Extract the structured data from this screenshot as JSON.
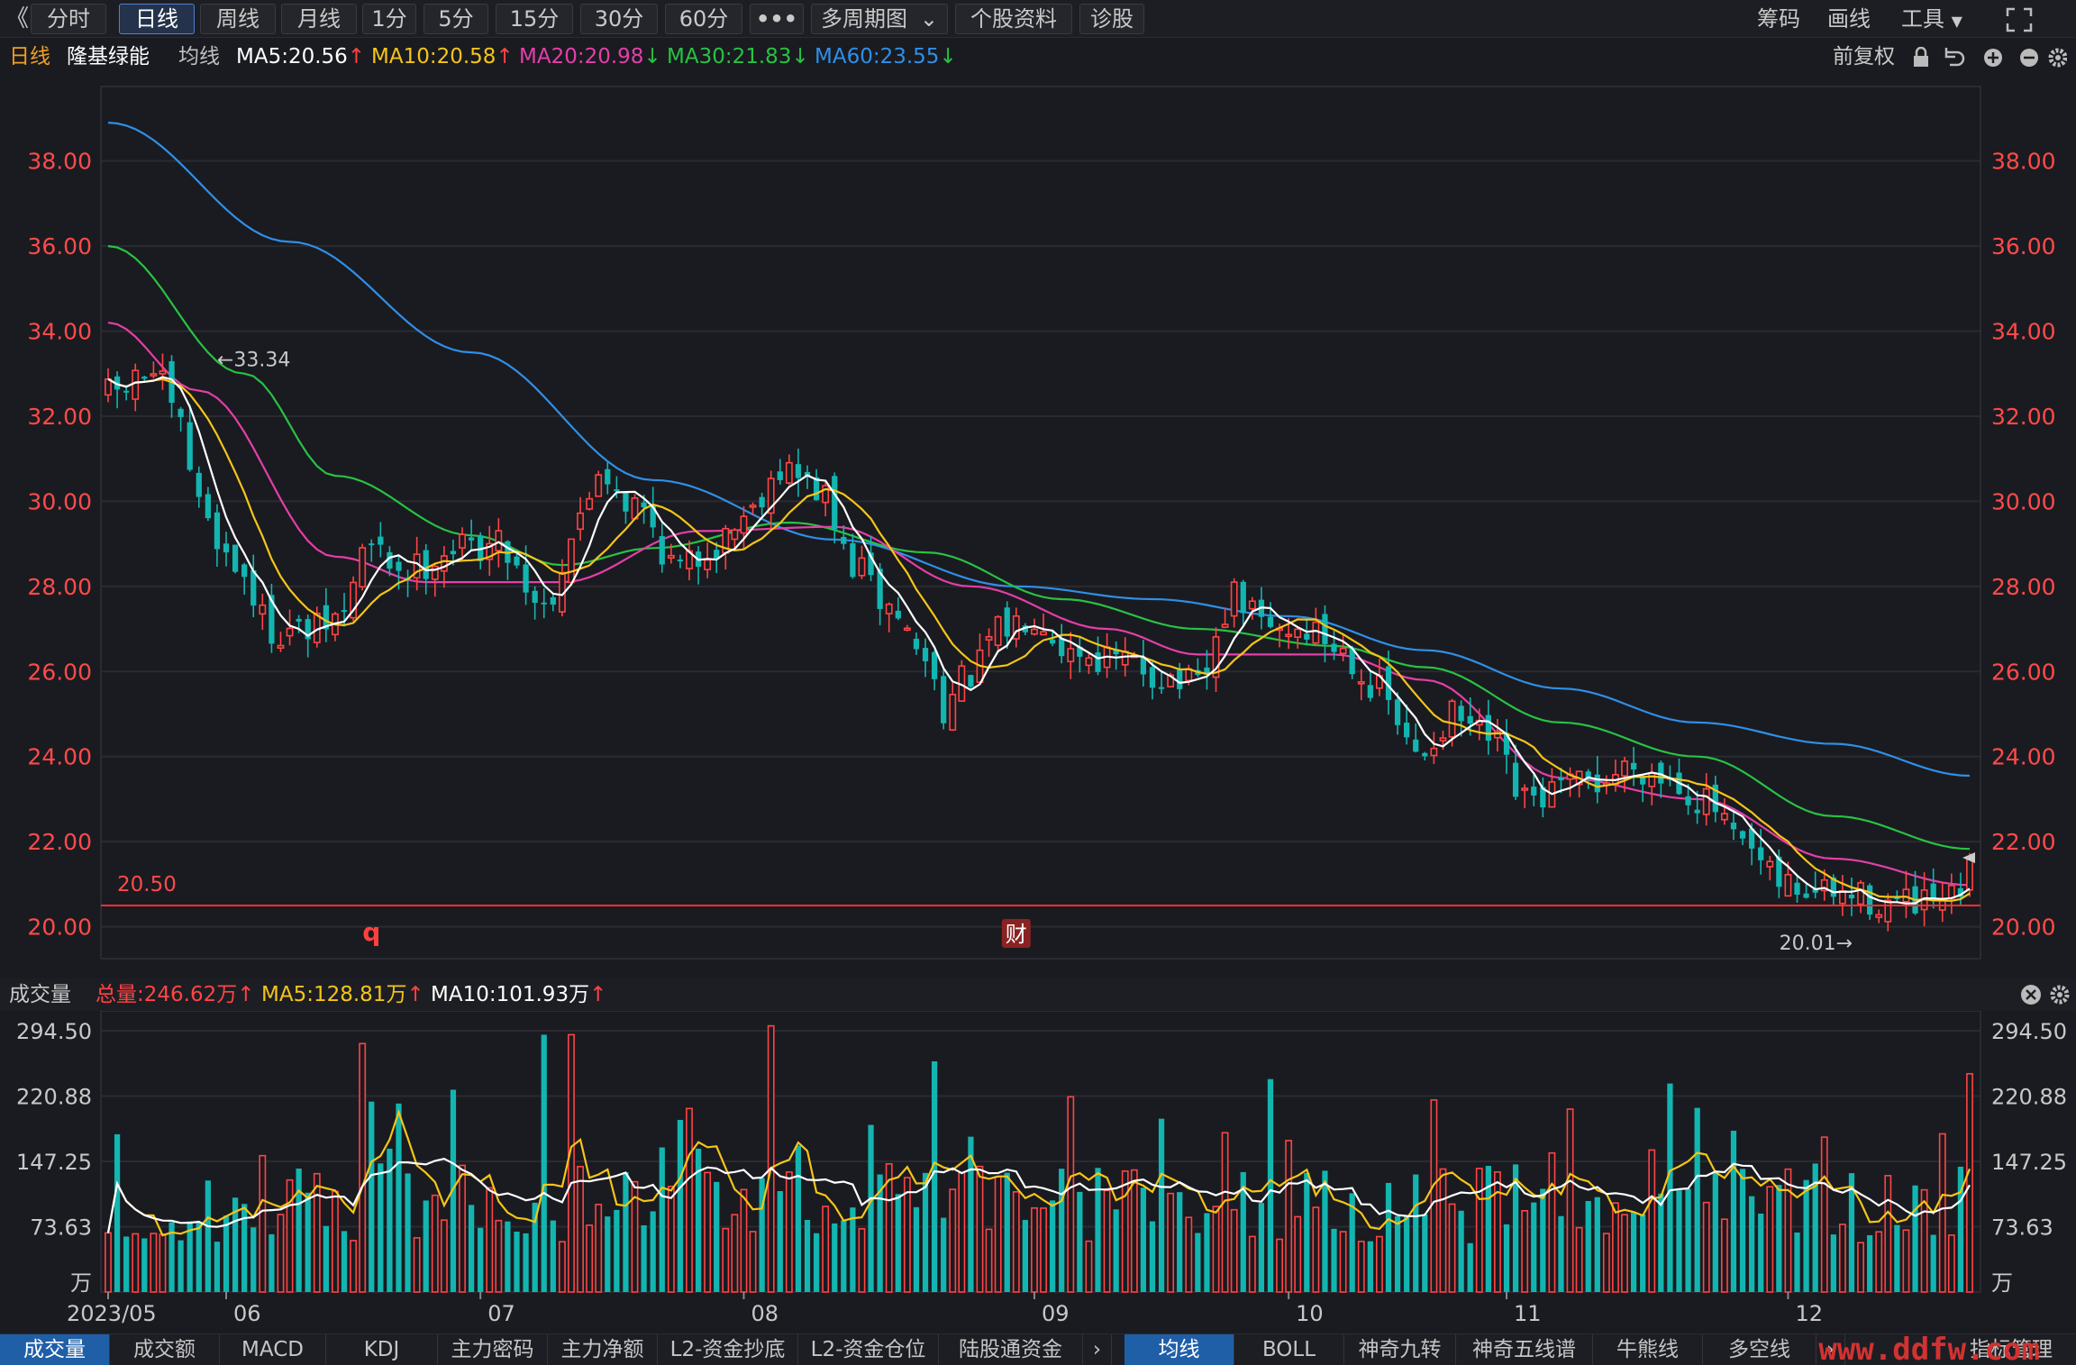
{
  "toolbar": {
    "back_glyph": "《",
    "periods": [
      "分时",
      "日线",
      "周线",
      "月线",
      "1分",
      "5分",
      "15分",
      "30分",
      "60分"
    ],
    "active_period": "日线",
    "more": "•••",
    "multi_period": "多周期图",
    "stock_info": "个股资料",
    "diagnose": "诊股",
    "chips": "筹码",
    "draw": "画线",
    "tools": "工具"
  },
  "info": {
    "period": "日线",
    "stock_name": "隆基绿能",
    "indicator": "均线",
    "ma5": "MA5:20.56",
    "ma10": "MA10:20.58",
    "ma20": "MA20:20.98",
    "ma30": "MA30:21.83",
    "ma60": "MA60:23.55",
    "adjust": "前复权"
  },
  "colors": {
    "up": "#ff4444",
    "down": "#13b5b1",
    "ma5": "#ffffff",
    "ma10": "#f5c518",
    "ma20": "#e43fa9",
    "ma30": "#28c244",
    "ma60": "#2f8fe8",
    "axis_text": "#ff4a4a",
    "grid": "#2a2b30"
  },
  "price_axis": {
    "labels": [
      "38.00",
      "36.00",
      "34.00",
      "32.00",
      "30.00",
      "28.00",
      "26.00",
      "24.00",
      "22.00",
      "20.00"
    ],
    "range": [
      19.25,
      39.75
    ]
  },
  "annotations": {
    "high": "←33.34",
    "low": "20.01→",
    "line_value": "20.50",
    "marker_q": "q",
    "marker_cai": "财"
  },
  "volume": {
    "title": "成交量",
    "total": "总量:246.62万",
    "ma5": "MA5:128.81万",
    "ma10": "MA10:101.93万",
    "axis_labels": [
      "294.50",
      "220.88",
      "147.25",
      "73.63"
    ],
    "unit": "万",
    "range": [
      0,
      294.5
    ]
  },
  "x_axis": {
    "labels": [
      {
        "label": "2023/05",
        "index": 0
      },
      {
        "label": "06",
        "index": 13
      },
      {
        "label": "07",
        "index": 41
      },
      {
        "label": "08",
        "index": 70
      },
      {
        "label": "09",
        "index": 102
      },
      {
        "label": "10",
        "index": 130
      },
      {
        "label": "11",
        "index": 154
      },
      {
        "label": "12",
        "index": 185
      }
    ]
  },
  "bottom_tabs_left": [
    "成交量",
    "成交额",
    "MACD",
    "KDJ",
    "主力密码",
    "主力净额",
    "L2-资金抄底",
    "L2-资金仓位",
    "陆股通资金"
  ],
  "bottom_tabs_right": [
    "均线",
    "BOLL",
    "神奇九转",
    "神奇五线谱",
    "牛熊线",
    "多空线"
  ],
  "bottom_tab_more": "指标管理",
  "watermark": "www.ddfw.com",
  "chart_data": {
    "type": "candlestick",
    "bars": 206,
    "ma60_anchors": [
      [
        0,
        38.9
      ],
      [
        20,
        36.1
      ],
      [
        40,
        33.5
      ],
      [
        60,
        30.5
      ],
      [
        80,
        29.1
      ],
      [
        100,
        28.0
      ],
      [
        115,
        27.7
      ],
      [
        130,
        27.3
      ],
      [
        145,
        26.5
      ],
      [
        160,
        25.6
      ],
      [
        175,
        24.8
      ],
      [
        190,
        24.3
      ],
      [
        205,
        23.55
      ]
    ],
    "ma30_anchors": [
      [
        0,
        36.0
      ],
      [
        15,
        33.0
      ],
      [
        25,
        30.6
      ],
      [
        40,
        29.2
      ],
      [
        50,
        28.5
      ],
      [
        60,
        28.9
      ],
      [
        75,
        29.5
      ],
      [
        90,
        28.8
      ],
      [
        105,
        27.7
      ],
      [
        120,
        27.0
      ],
      [
        135,
        26.6
      ],
      [
        145,
        26.1
      ],
      [
        160,
        24.8
      ],
      [
        175,
        24.0
      ],
      [
        190,
        22.6
      ],
      [
        205,
        21.83
      ]
    ],
    "ma20_anchors": [
      [
        0,
        34.2
      ],
      [
        10,
        32.6
      ],
      [
        25,
        28.7
      ],
      [
        35,
        28.1
      ],
      [
        50,
        28.1
      ],
      [
        65,
        29.3
      ],
      [
        80,
        29.4
      ],
      [
        95,
        28.0
      ],
      [
        110,
        27.0
      ],
      [
        120,
        26.4
      ],
      [
        135,
        26.4
      ],
      [
        145,
        25.8
      ],
      [
        160,
        23.5
      ],
      [
        175,
        23.0
      ],
      [
        190,
        21.6
      ],
      [
        205,
        20.98
      ]
    ],
    "close_anchors": [
      [
        0,
        32.5
      ],
      [
        5,
        33.0
      ],
      [
        8,
        31.7
      ],
      [
        10,
        29.9
      ],
      [
        14,
        28.5
      ],
      [
        18,
        27.0
      ],
      [
        22,
        26.9
      ],
      [
        26,
        27.3
      ],
      [
        28,
        28.9
      ],
      [
        33,
        28.4
      ],
      [
        38,
        28.9
      ],
      [
        43,
        29.0
      ],
      [
        48,
        27.6
      ],
      [
        52,
        29.5
      ],
      [
        54,
        30.8
      ],
      [
        58,
        29.9
      ],
      [
        63,
        28.4
      ],
      [
        67,
        29.0
      ],
      [
        70,
        29.7
      ],
      [
        74,
        30.8
      ],
      [
        78,
        30.3
      ],
      [
        82,
        28.5
      ],
      [
        86,
        27.5
      ],
      [
        90,
        26.3
      ],
      [
        92,
        25.2
      ],
      [
        95,
        25.9
      ],
      [
        98,
        26.9
      ],
      [
        102,
        27.4
      ],
      [
        106,
        26.5
      ],
      [
        112,
        26.2
      ],
      [
        116,
        25.9
      ],
      [
        120,
        25.6
      ],
      [
        124,
        27.7
      ],
      [
        128,
        27.0
      ],
      [
        132,
        27.0
      ],
      [
        136,
        26.5
      ],
      [
        140,
        25.5
      ],
      [
        144,
        24.0
      ],
      [
        148,
        24.9
      ],
      [
        152,
        24.4
      ],
      [
        156,
        22.9
      ],
      [
        160,
        23.2
      ],
      [
        164,
        23.4
      ],
      [
        168,
        23.8
      ],
      [
        172,
        23.5
      ],
      [
        176,
        22.9
      ],
      [
        180,
        21.8
      ],
      [
        184,
        21.0
      ],
      [
        188,
        20.8
      ],
      [
        192,
        20.7
      ],
      [
        196,
        20.55
      ],
      [
        200,
        20.45
      ],
      [
        203,
        20.55
      ],
      [
        205,
        21.2
      ]
    ]
  }
}
